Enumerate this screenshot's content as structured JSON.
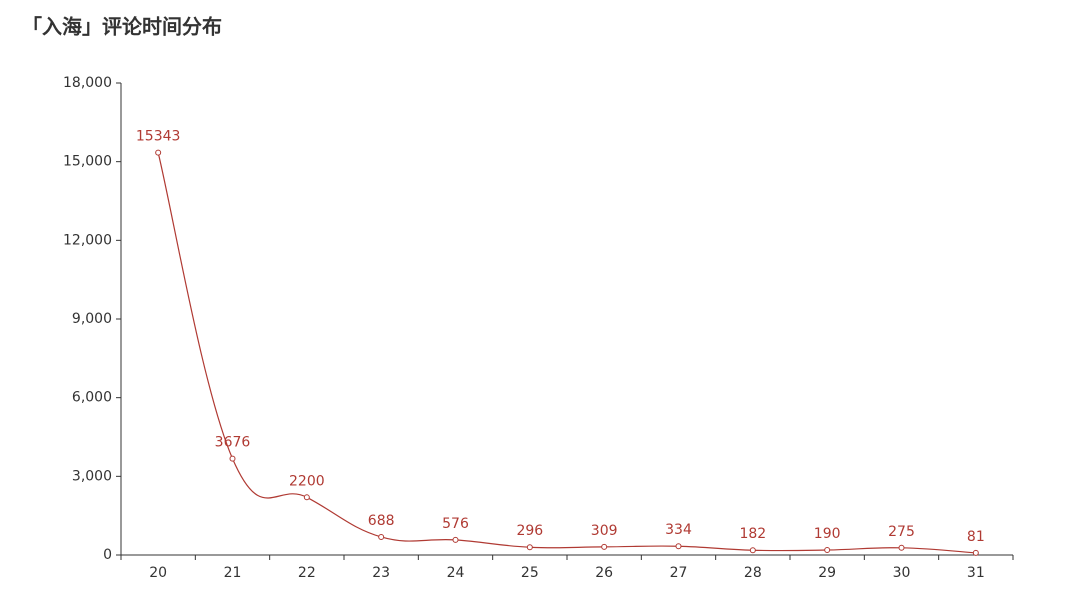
{
  "chart_data": {
    "type": "line",
    "title": "「入海」评论时间分布",
    "categories": [
      "20",
      "21",
      "22",
      "23",
      "24",
      "25",
      "26",
      "27",
      "28",
      "29",
      "30",
      "31"
    ],
    "values": [
      15343,
      3676,
      2200,
      688,
      576,
      296,
      309,
      334,
      182,
      190,
      275,
      81
    ],
    "color": "#b03a33",
    "smooth": true,
    "ylim": [
      0,
      18000
    ],
    "yticks": [
      0,
      {
        "value": 3000,
        "label": "3,000"
      },
      {
        "value": 6000,
        "label": "6,000"
      },
      {
        "value": 9000,
        "label": "9,000"
      },
      {
        "value": 12000,
        "label": "12,000"
      },
      {
        "value": 15000,
        "label": "15,000"
      },
      {
        "value": 18000,
        "label": "18,000"
      }
    ],
    "grid": false
  }
}
